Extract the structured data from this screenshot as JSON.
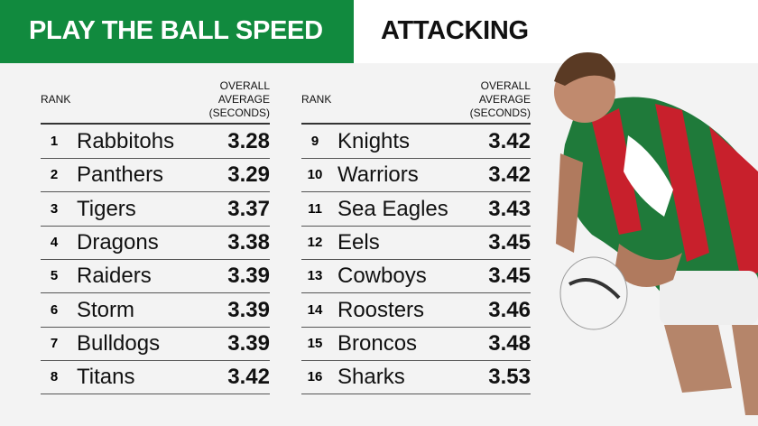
{
  "header": {
    "title": "PLAY THE BALL SPEED",
    "subtitle": "ATTACKING"
  },
  "tables": [
    {
      "columns": [
        "RANK",
        "OVERALL AVERAGE (SECONDS)"
      ],
      "rows": [
        [
          1,
          "Rabbitohs",
          3.28
        ],
        [
          2,
          "Panthers",
          3.29
        ],
        [
          3,
          "Tigers",
          3.37
        ],
        [
          4,
          "Dragons",
          3.38
        ],
        [
          5,
          "Raiders",
          3.39
        ],
        [
          6,
          "Storm",
          3.39
        ],
        [
          7,
          "Bulldogs",
          3.39
        ],
        [
          8,
          "Titans",
          3.42
        ]
      ]
    },
    {
      "columns": [
        "RANK",
        "OVERALL AVERAGE (SECONDS)"
      ],
      "rows": [
        [
          9,
          "Knights",
          3.42
        ],
        [
          10,
          "Warriors",
          3.42
        ],
        [
          11,
          "Sea Eagles",
          3.43
        ],
        [
          12,
          "Eels",
          3.45
        ],
        [
          13,
          "Cowboys",
          3.45
        ],
        [
          14,
          "Roosters",
          3.46
        ],
        [
          15,
          "Broncos",
          3.48
        ],
        [
          16,
          "Sharks",
          3.53
        ]
      ]
    }
  ]
}
